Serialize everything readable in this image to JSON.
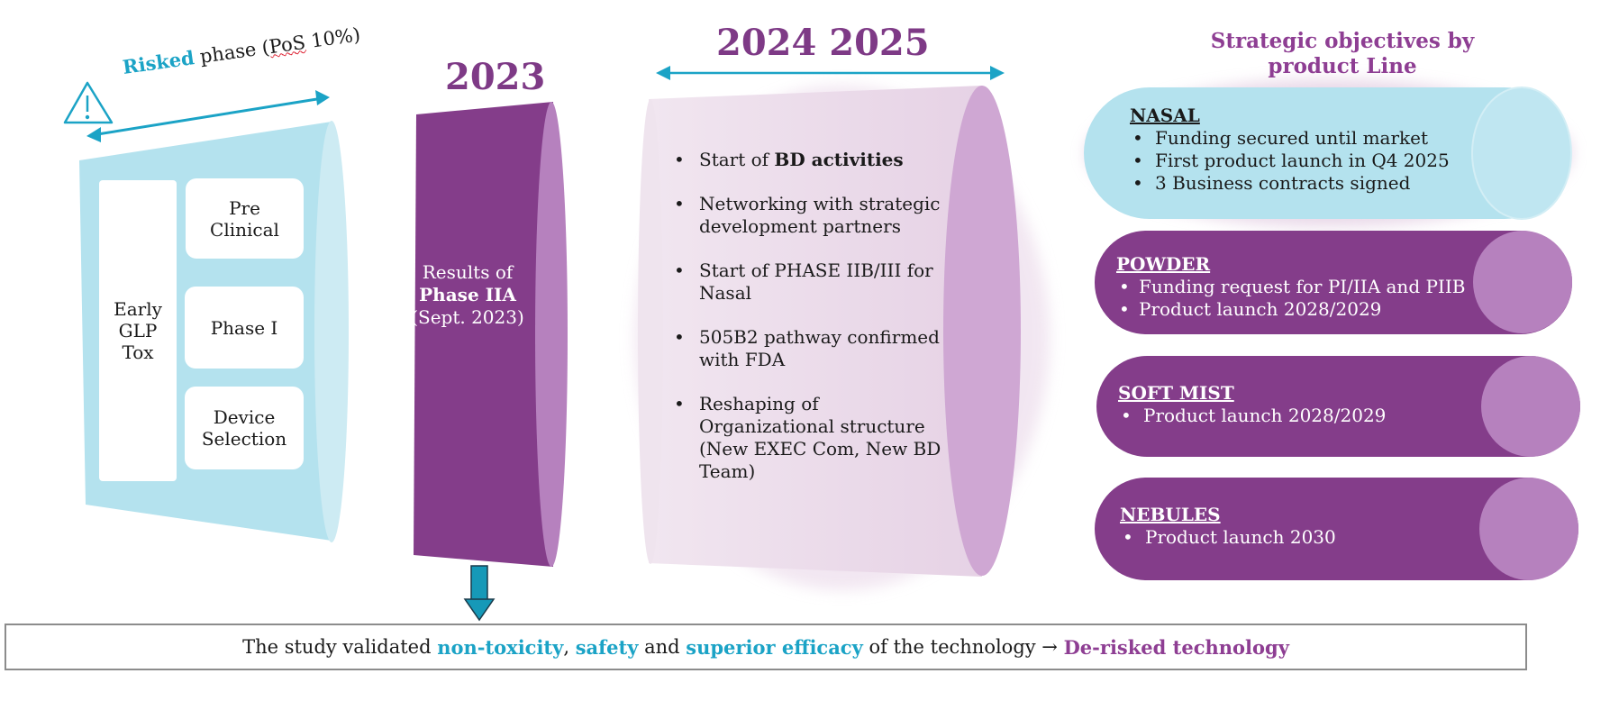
{
  "colors": {
    "teal": "#1ba3c6",
    "light_blue": "#b4e2ee",
    "purple": "#843d8a",
    "light_purple": "#b681be",
    "lavender": "#ede0ec",
    "lavender_end": "#cfa7d3"
  },
  "risked": {
    "title_highlight": "Risked",
    "title_rest": " phase (",
    "title_pos": "PoS",
    "title_end": " 10%)",
    "warning_icon": "warning-triangle-icon",
    "early_label": "Early\nGLP\nTox",
    "pre_clinical": "Pre\nClinical",
    "phase_one": "Phase I",
    "device_selection": "Device\nSelection"
  },
  "phase_2023": {
    "year": "2023",
    "line1": "Results of",
    "line2": "Phase IIA",
    "line3": "(Sept. 2023)",
    "arrow_icon": "arrow-down-icon"
  },
  "years_2024_2025": {
    "year": "2024 2025",
    "items": [
      {
        "text": "Start of ",
        "bold": "BD activities"
      },
      {
        "text": "Networking with strategic development partners",
        "bold": ""
      },
      {
        "text": "Start of PHASE IIB/III for Nasal",
        "bold": ""
      },
      {
        "text": "505B2 pathway confirmed with FDA",
        "bold": ""
      },
      {
        "text": "Reshaping of Organizational structure (New EXEC Com, New BD Team)",
        "bold": ""
      }
    ]
  },
  "strategic": {
    "title": "Strategic objectives by product Line",
    "lines": [
      {
        "name": "NASAL",
        "items": [
          "Funding secured until market",
          "First product launch in Q4 2025",
          "3 Business contracts signed"
        ]
      },
      {
        "name": "POWDER",
        "items": [
          "Funding  request for PI/IIA and PIIB",
          "Product launch 2028/2029"
        ]
      },
      {
        "name": "SOFT MIST",
        "items": [
          "Product launch 2028/2029"
        ]
      },
      {
        "name": "NEBULES",
        "items": [
          "Product launch 2030"
        ]
      }
    ]
  },
  "conclusion": {
    "prefix": "The study validated ",
    "term1": "non-toxicity",
    "sep1": ", ",
    "term2": "safety",
    "sep2": " and ",
    "term3": "superior efficacy",
    "middle": " of the technology → ",
    "result": "De-risked technology"
  }
}
